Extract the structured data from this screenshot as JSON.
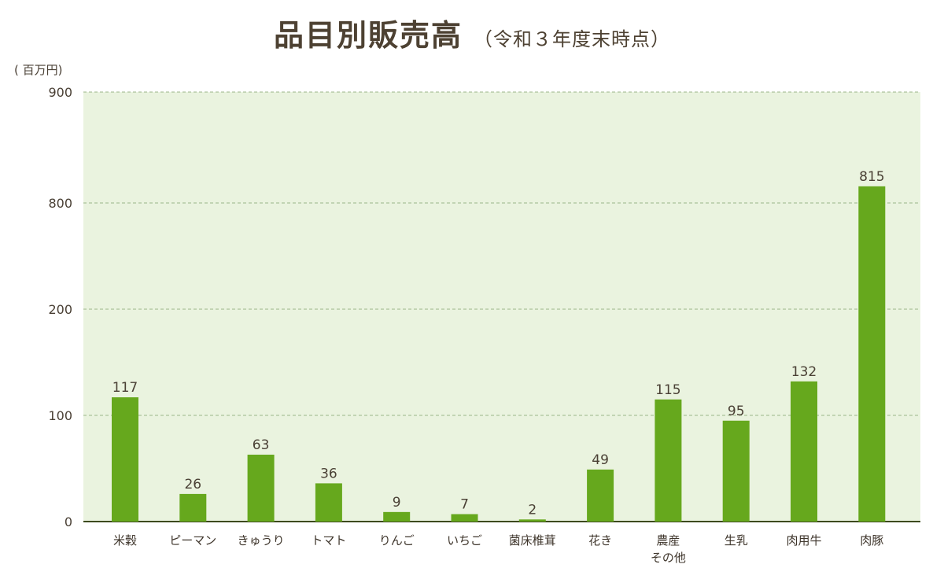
{
  "title": "品目別販売高",
  "subtitle": "（令和３年度末時点）",
  "chart_data": {
    "type": "bar",
    "title": "品目別販売高",
    "subtitle": "（令和３年度末時点）",
    "ylabel": "( 百万円)",
    "yticks": [
      "0",
      "100",
      "200",
      "800",
      "900"
    ],
    "axis_break": "200–800 区間省略",
    "ylim": [
      0,
      900
    ],
    "grid": true,
    "categories": [
      "米穀",
      "ピーマン",
      "きゅうり",
      "トマト",
      "りんご",
      "いちご",
      "菌床椎茸",
      "花き",
      "農産\nその他",
      "生乳",
      "肉用牛",
      "肉豚"
    ],
    "values": [
      117,
      26,
      63,
      36,
      9,
      7,
      2,
      49,
      115,
      95,
      132,
      815
    ],
    "value_labels": [
      "117",
      "26",
      "63",
      "36",
      "9",
      "7",
      "2",
      "49",
      "115",
      "95",
      "132",
      "815"
    ],
    "colors": {
      "bar": "#66a81d",
      "plot_bg": "#eaf3df",
      "grid": "#9bb58a",
      "axis": "#3d4a1e"
    }
  }
}
